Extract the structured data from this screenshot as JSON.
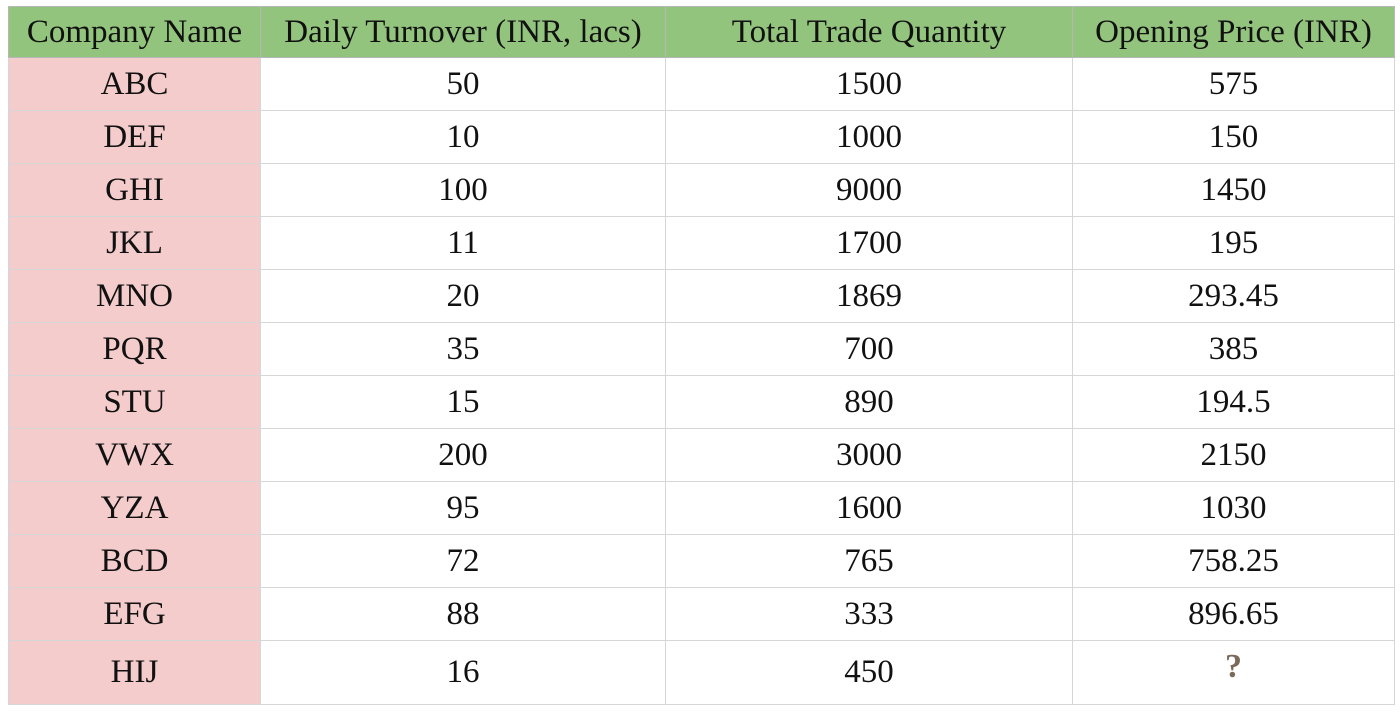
{
  "chart_data": {
    "type": "table",
    "columns": [
      "Company Name",
      "Daily Turnover (INR, lacs)",
      "Total Trade Quantity",
      "Opening Price (INR)"
    ],
    "rows": [
      [
        "ABC",
        "50",
        "1500",
        "575"
      ],
      [
        "DEF",
        "10",
        "1000",
        "150"
      ],
      [
        "GHI",
        "100",
        "9000",
        "1450"
      ],
      [
        "JKL",
        "11",
        "1700",
        "195"
      ],
      [
        "MNO",
        "20",
        "1869",
        "293.45"
      ],
      [
        "PQR",
        "35",
        "700",
        "385"
      ],
      [
        "STU",
        "15",
        "890",
        "194.5"
      ],
      [
        "VWX",
        "200",
        "3000",
        "2150"
      ],
      [
        "YZA",
        "95",
        "1600",
        "1030"
      ],
      [
        "BCD",
        "72",
        "765",
        "758.25"
      ],
      [
        "EFG",
        "88",
        "333",
        "896.65"
      ],
      [
        "HIJ",
        "16",
        "450",
        "?"
      ]
    ],
    "colors": {
      "header_fill": "#93c47d",
      "company_column_fill": "#f4cccc",
      "gridline": "#d6d6d6"
    }
  }
}
